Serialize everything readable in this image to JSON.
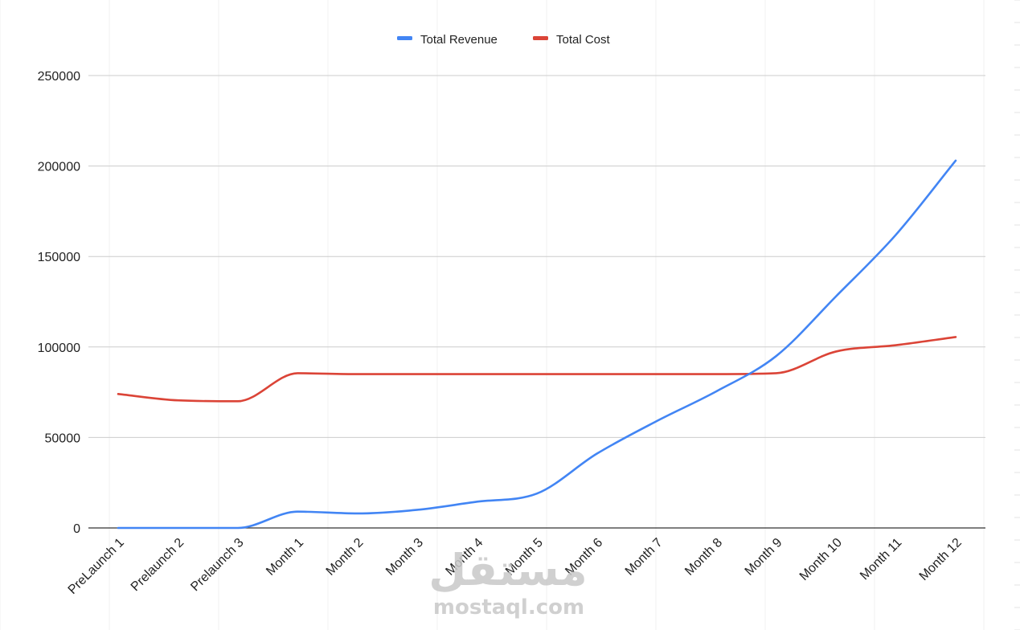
{
  "chart_data": {
    "type": "line",
    "categories": [
      "PreLaunch 1",
      "Prelaunch 2",
      "Prelaunch 3",
      "Month 1",
      "Month 2",
      "Month 3",
      "Month 4",
      "Month 5",
      "Month 6",
      "Month 7",
      "Month 8",
      "Month 9",
      "Month 10",
      "Month 11",
      "Month 12"
    ],
    "series": [
      {
        "name": "Total Revenue",
        "color": "#4285f4",
        "values": [
          0,
          0,
          0,
          9000,
          8000,
          10000,
          14500,
          19000,
          41000,
          59000,
          75500,
          95000,
          128000,
          162000,
          203000
        ]
      },
      {
        "name": "Total Cost",
        "color": "#db4437",
        "values": [
          74000,
          70500,
          70000,
          85500,
          85000,
          85000,
          85000,
          85000,
          85000,
          85000,
          85000,
          85500,
          97500,
          101000,
          105500
        ]
      }
    ],
    "yticks": [
      "250000",
      "200000",
      "150000",
      "100000",
      "50000",
      "0"
    ],
    "ylim": [
      0,
      250000
    ],
    "grid": true,
    "legend_position": "top-center"
  },
  "watermark": {
    "arabic_text": "مستقل",
    "latin_text": "mostaql.com"
  }
}
